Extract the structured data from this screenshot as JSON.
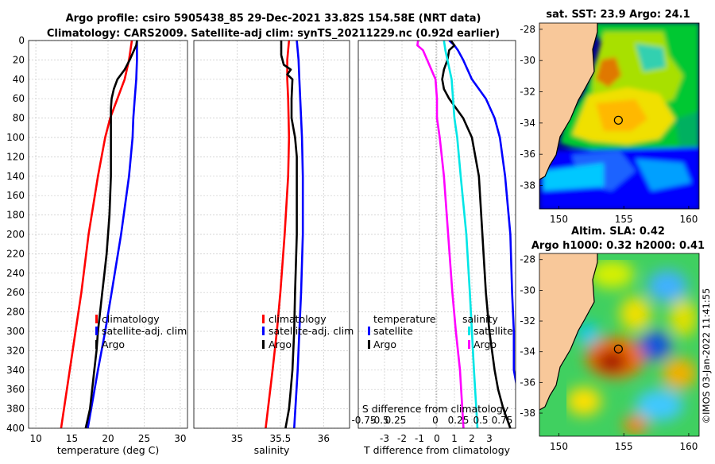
{
  "header": {
    "title_line1": "Argo profile: csiro 5905438_85 29-Dec-2021 33.82S 154.58E (NRT data)",
    "title_line2": "Climatology: CARS2009. Satellite-adj clim: synTS_20211229.nc (0.92d earlier)",
    "stamp": "©IMOS 03-Jan-2022 11:41:55"
  },
  "colors": {
    "climatology": "#ff0000",
    "satellite": "#0000ff",
    "argo": "#000000",
    "s_satellite": "#00e6e6",
    "s_argo": "#ff00ff",
    "land": "#f8c89a",
    "coast": "#000000"
  },
  "chart_data": [
    {
      "id": "temperature",
      "type": "line",
      "xlabel": "temperature (deg C)",
      "ylabel": "",
      "xlim": [
        9,
        31
      ],
      "ylim": [
        400,
        0
      ],
      "xticks": [
        "10",
        "15",
        "20",
        "25",
        "30"
      ],
      "yticks": [
        "0",
        "20",
        "40",
        "60",
        "80",
        "100",
        "120",
        "140",
        "160",
        "180",
        "200",
        "220",
        "240",
        "260",
        "280",
        "300",
        "320",
        "340",
        "360",
        "380",
        "400"
      ],
      "legend": [
        "climatology",
        "satellite-adj. clim",
        "Argo"
      ],
      "series": [
        {
          "name": "climatology",
          "color": "#ff0000",
          "depth": [
            0,
            20,
            40,
            60,
            80,
            100,
            140,
            200,
            260,
            300,
            340,
            400
          ],
          "values": [
            23.3,
            22.9,
            22.3,
            21.3,
            20.3,
            19.6,
            18.6,
            17.3,
            16.3,
            15.5,
            14.7,
            13.5
          ]
        },
        {
          "name": "satellite-adj. clim",
          "color": "#0000ff",
          "depth": [
            0,
            20,
            40,
            60,
            80,
            100,
            140,
            200,
            260,
            300,
            340,
            400
          ],
          "values": [
            24.0,
            24.0,
            23.9,
            23.7,
            23.5,
            23.4,
            22.9,
            21.8,
            20.5,
            19.6,
            18.6,
            17.2
          ]
        },
        {
          "name": "Argo",
          "color": "#000000",
          "depth": [
            0,
            5,
            10,
            20,
            30,
            40,
            50,
            60,
            70,
            80,
            100,
            120,
            140,
            160,
            180,
            200,
            220,
            240,
            260,
            280,
            300,
            320,
            340,
            360,
            380,
            400
          ],
          "values": [
            24.0,
            23.9,
            23.6,
            23.0,
            22.3,
            21.3,
            20.8,
            20.5,
            20.4,
            20.4,
            20.4,
            20.4,
            20.4,
            20.3,
            20.2,
            20.0,
            19.8,
            19.5,
            19.2,
            18.9,
            18.6,
            18.4,
            18.1,
            17.8,
            17.5,
            16.9
          ]
        }
      ]
    },
    {
      "id": "salinity",
      "type": "line",
      "xlabel": "salinity",
      "ylabel": "",
      "xlim": [
        34.5,
        36.3
      ],
      "ylim": [
        400,
        0
      ],
      "xticks": [
        "35",
        "35.5",
        "36"
      ],
      "legend": [
        "climatology",
        "satellite-adj. clim",
        "Argo"
      ],
      "series": [
        {
          "name": "climatology",
          "color": "#ff0000",
          "depth": [
            0,
            20,
            40,
            60,
            100,
            140,
            200,
            260,
            300,
            340,
            400
          ],
          "values": [
            35.6,
            35.58,
            35.58,
            35.59,
            35.6,
            35.59,
            35.55,
            35.5,
            35.46,
            35.41,
            35.33
          ]
        },
        {
          "name": "satellite-adj. clim",
          "color": "#0000ff",
          "depth": [
            0,
            20,
            40,
            60,
            80,
            100,
            140,
            200,
            260,
            300,
            340,
            400
          ],
          "values": [
            35.69,
            35.71,
            35.72,
            35.73,
            35.74,
            35.75,
            35.76,
            35.76,
            35.74,
            35.72,
            35.7,
            35.66
          ]
        },
        {
          "name": "Argo",
          "color": "#000000",
          "depth": [
            0,
            15,
            25,
            30,
            35,
            40,
            60,
            80,
            100,
            120,
            140,
            200,
            260,
            300,
            340,
            360,
            380,
            400
          ],
          "values": [
            35.51,
            35.51,
            35.54,
            35.62,
            35.58,
            35.64,
            35.63,
            35.63,
            35.67,
            35.69,
            35.69,
            35.69,
            35.67,
            35.66,
            35.64,
            35.62,
            35.6,
            35.56
          ]
        }
      ]
    },
    {
      "id": "differences",
      "type": "line",
      "xlabel": "T difference from climatology",
      "x2label": "S difference from climatology",
      "xlim": [
        -4.5,
        4.5
      ],
      "ylim": [
        400,
        0
      ],
      "xticks": [
        "-3",
        "-2",
        "-1",
        "0",
        "1",
        "2",
        "3"
      ],
      "x2ticks": [
        "-0.75",
        "-0.5",
        "0.25",
        "0",
        "0.25",
        "0.5",
        "0.75"
      ],
      "legend": [
        "temperature",
        "satellite",
        "Argo",
        "salinity",
        "satellite",
        "Argo"
      ],
      "series": [
        {
          "name": "T satellite",
          "color": "#0000ff",
          "depth": [
            0,
            5,
            10,
            20,
            40,
            60,
            80,
            100,
            140,
            200,
            260,
            300,
            340,
            360,
            380,
            400
          ],
          "values": [
            0.7,
            1.0,
            1.2,
            1.5,
            2.0,
            2.8,
            3.3,
            3.6,
            3.9,
            4.2,
            4.3,
            4.4,
            4.4,
            4.6,
            4.6,
            4.6
          ]
        },
        {
          "name": "T Argo",
          "color": "#000000",
          "depth": [
            0,
            5,
            10,
            20,
            30,
            40,
            50,
            60,
            80,
            100,
            140,
            200,
            260,
            300,
            340,
            360,
            380,
            400
          ],
          "values": [
            0.8,
            1.0,
            0.7,
            0.6,
            0.4,
            0.3,
            0.4,
            0.7,
            1.5,
            2.0,
            2.4,
            2.6,
            2.8,
            3.0,
            3.3,
            3.5,
            3.8,
            4.2
          ]
        },
        {
          "name": "S satellite",
          "color": "#00e6e6",
          "depth": [
            0,
            10,
            20,
            40,
            60,
            80,
            100,
            140,
            200,
            260,
            300,
            340,
            400
          ],
          "values": [
            0.1,
            0.12,
            0.15,
            0.21,
            0.23,
            0.25,
            0.29,
            0.34,
            0.42,
            0.47,
            0.5,
            0.53,
            0.58
          ]
        },
        {
          "name": "S Argo",
          "color": "#ff00ff",
          "depth": [
            0,
            5,
            10,
            20,
            40,
            60,
            80,
            100,
            140,
            200,
            260,
            300,
            340,
            400
          ],
          "values": [
            -0.27,
            -0.28,
            -0.2,
            -0.14,
            -0.02,
            0.0,
            0.0,
            0.04,
            0.1,
            0.16,
            0.22,
            0.27,
            0.33,
            0.38
          ]
        }
      ]
    },
    {
      "id": "sst_map",
      "type": "heatmap",
      "title": "sat. SST: 23.9 Argo: 24.1",
      "xlim": [
        148.5,
        160.8
      ],
      "ylim": [
        -39.5,
        -27.6
      ],
      "xticks": [
        "150",
        "155",
        "160"
      ],
      "yticks": [
        "-28",
        "-30",
        "-32",
        "-34",
        "-36",
        "-38"
      ],
      "marker": {
        "lon": 154.58,
        "lat": -33.82
      }
    },
    {
      "id": "sla_map",
      "type": "heatmap",
      "title_line1": "Altim. SLA: 0.42",
      "title_line2": "Argo h1000: 0.32 h2000: 0.41",
      "xlim": [
        148.5,
        160.8
      ],
      "ylim": [
        -39.5,
        -27.6
      ],
      "xticks": [
        "150",
        "155",
        "160"
      ],
      "yticks": [
        "-28",
        "-30",
        "-32",
        "-34",
        "-36",
        "-38"
      ],
      "marker": {
        "lon": 154.58,
        "lat": -33.82
      }
    }
  ]
}
